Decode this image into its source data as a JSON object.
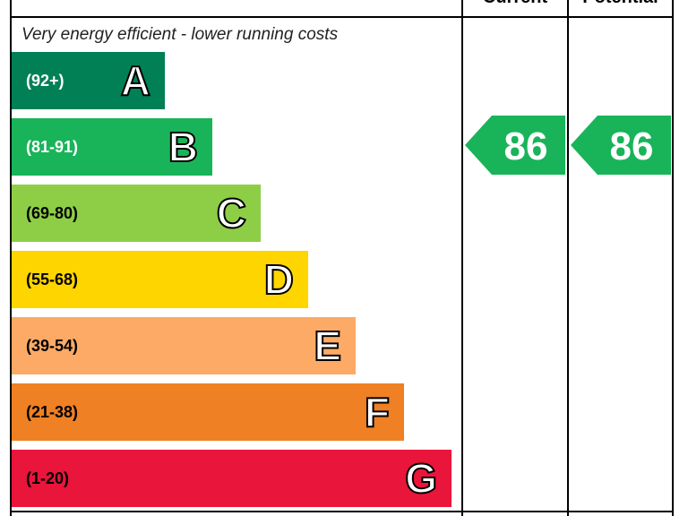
{
  "headers": {
    "current": "Current",
    "potential": "Potential"
  },
  "caption": "Very energy efficient - lower running costs",
  "chart_data": {
    "type": "bar",
    "categories": [
      "A",
      "B",
      "C",
      "D",
      "E",
      "F",
      "G"
    ],
    "ranges": [
      "(92+)",
      "(81-91)",
      "(69-80)",
      "(55-68)",
      "(39-54)",
      "(21-38)",
      "(1-20)"
    ],
    "colors": [
      "#008054",
      "#19b459",
      "#8dce46",
      "#ffd500",
      "#fcaa65",
      "#ef8023",
      "#e9153b"
    ],
    "range_text_colors": [
      "#ffffff",
      "#ffffff",
      "#000000",
      "#000000",
      "#000000",
      "#000000",
      "#000000"
    ],
    "current": 86,
    "potential": 86,
    "rating_band": "B"
  }
}
